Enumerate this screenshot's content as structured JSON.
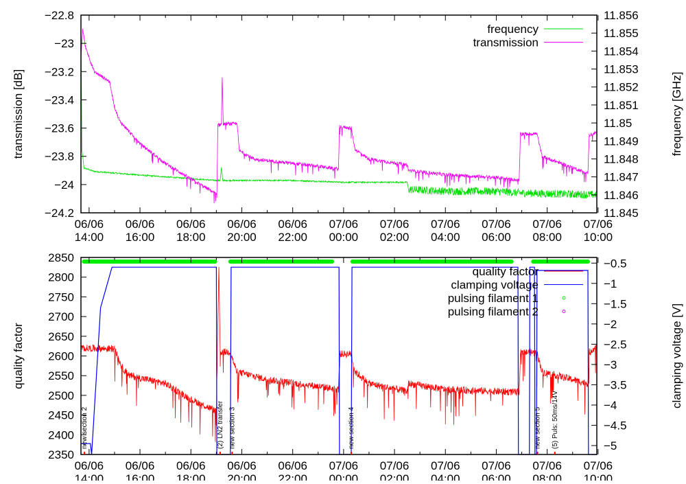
{
  "chart_data": [
    {
      "type": "line",
      "title": "",
      "xlabel": "",
      "ylabel": "transmission [dB]",
      "y2label": "frequency [GHz]",
      "x_unit": "hours since 06/06 00:00",
      "xlim": [
        13.68,
        33.95
      ],
      "ylim": [
        -24.2,
        -22.8
      ],
      "y2lim": [
        11.845,
        11.856
      ],
      "yticks": [
        "-24.2",
        "-24",
        "-23.8",
        "-23.6",
        "-23.4",
        "-23.2",
        "-23",
        "-22.8"
      ],
      "y2ticks": [
        "11.845",
        "11.846",
        "11.847",
        "11.848",
        "11.849",
        "11.85",
        "11.851",
        "11.852",
        "11.853",
        "11.854",
        "11.855",
        "11.856"
      ],
      "xticks": [
        {
          "h": 14,
          "date": "06/06",
          "time": "14:00"
        },
        {
          "h": 16,
          "date": "06/06",
          "time": "16:00"
        },
        {
          "h": 18,
          "date": "06/06",
          "time": "18:00"
        },
        {
          "h": 20,
          "date": "06/06",
          "time": "20:00"
        },
        {
          "h": 22,
          "date": "06/06",
          "time": "22:00"
        },
        {
          "h": 24,
          "date": "07/06",
          "time": "00:00"
        },
        {
          "h": 26,
          "date": "07/06",
          "time": "02:00"
        },
        {
          "h": 28,
          "date": "07/06",
          "time": "04:00"
        },
        {
          "h": 30,
          "date": "07/06",
          "time": "06:00"
        },
        {
          "h": 32,
          "date": "07/06",
          "time": "08:00"
        },
        {
          "h": 34,
          "date": "07/06",
          "time": "10:00"
        }
      ],
      "legend_position": "top-right",
      "series": [
        {
          "name": "frequency",
          "axis": "y2",
          "color": "#00dd00",
          "noise": 4e-05,
          "noise_after": [
            26.55,
            0.00022
          ],
          "points": [
            [
              13.68,
              11.8555
            ],
            [
              13.72,
              11.8485
            ],
            [
              13.8,
              11.8475
            ],
            [
              14.2,
              11.8473
            ],
            [
              16,
              11.8471
            ],
            [
              18,
              11.8469
            ],
            [
              19,
              11.8468
            ],
            [
              19.15,
              11.8468
            ],
            [
              19.2,
              11.8475
            ],
            [
              19.25,
              11.8468
            ],
            [
              22,
              11.8468
            ],
            [
              24,
              11.8467
            ],
            [
              26.5,
              11.8467
            ],
            [
              26.55,
              11.8463
            ],
            [
              28,
              11.8462
            ],
            [
              30,
              11.8462
            ],
            [
              31,
              11.8461
            ],
            [
              33.95,
              11.846
            ]
          ]
        },
        {
          "name": "transmission",
          "axis": "y",
          "color": "#ee00ee",
          "noise": 0.012,
          "points": [
            [
              13.68,
              -23.1
            ],
            [
              13.75,
              -22.9
            ],
            [
              13.85,
              -23.02
            ],
            [
              14.2,
              -23.2
            ],
            [
              14.8,
              -23.27
            ],
            [
              15.0,
              -23.45
            ],
            [
              15.2,
              -23.55
            ],
            [
              16,
              -23.71
            ],
            [
              17,
              -23.85
            ],
            [
              18,
              -23.96
            ],
            [
              18.95,
              -24.06
            ],
            [
              19.02,
              -24.08
            ],
            [
              19.06,
              -23.58
            ],
            [
              19.2,
              -23.57
            ],
            [
              19.23,
              -23.22
            ],
            [
              19.27,
              -23.57
            ],
            [
              19.82,
              -23.57
            ],
            [
              19.9,
              -23.76
            ],
            [
              20.5,
              -23.82
            ],
            [
              22,
              -23.85
            ],
            [
              23,
              -23.87
            ],
            [
              23.8,
              -23.89
            ],
            [
              23.84,
              -23.59
            ],
            [
              24.3,
              -23.6
            ],
            [
              24.45,
              -23.75
            ],
            [
              25,
              -23.82
            ],
            [
              26.5,
              -23.86
            ],
            [
              26.55,
              -23.9
            ],
            [
              28,
              -23.93
            ],
            [
              30,
              -23.95
            ],
            [
              30.9,
              -23.97
            ],
            [
              30.95,
              -23.64
            ],
            [
              31.6,
              -23.64
            ],
            [
              31.8,
              -23.8
            ],
            [
              33,
              -23.88
            ],
            [
              33.6,
              -23.92
            ],
            [
              33.65,
              -23.65
            ],
            [
              33.95,
              -23.63
            ]
          ]
        }
      ]
    },
    {
      "type": "line",
      "title": "",
      "xlabel": "",
      "ylabel": "quality factor",
      "y2label": "clamping voltage [V]",
      "x_unit": "hours since 06/06 00:00",
      "xlim": [
        13.68,
        33.95
      ],
      "ylim": [
        2350,
        2850
      ],
      "y2lim": [
        -5.22,
        -0.36
      ],
      "yticks": [
        "2350",
        "2400",
        "2450",
        "2500",
        "2550",
        "2600",
        "2650",
        "2700",
        "2750",
        "2800",
        "2850"
      ],
      "y2ticks": [
        "-5",
        "-4.5",
        "-4",
        "-3.5",
        "-3",
        "-2.5",
        "-2",
        "-1.5",
        "-1",
        "-0.5"
      ],
      "legend_position": "top-right",
      "series": [
        {
          "name": "quality factor",
          "axis": "y",
          "color": "#ff0000",
          "noise": 9,
          "points": [
            [
              13.68,
              2620
            ],
            [
              15.0,
              2618
            ],
            [
              15.3,
              2570
            ],
            [
              15.6,
              2550
            ],
            [
              17,
              2530
            ],
            [
              18,
              2490
            ],
            [
              19.0,
              2460
            ],
            [
              19.1,
              2820
            ],
            [
              19.15,
              2610
            ],
            [
              19.55,
              2610
            ],
            [
              19.8,
              2560
            ],
            [
              21,
              2540
            ],
            [
              23,
              2523
            ],
            [
              23.8,
              2515
            ],
            [
              23.85,
              2605
            ],
            [
              24.3,
              2605
            ],
            [
              24.45,
              2560
            ],
            [
              25,
              2530
            ],
            [
              26.5,
              2510
            ],
            [
              26.55,
              2530
            ],
            [
              28,
              2515
            ],
            [
              30,
              2510
            ],
            [
              30.9,
              2508
            ],
            [
              30.95,
              2610
            ],
            [
              31.6,
              2608
            ],
            [
              31.8,
              2560
            ],
            [
              33,
              2540
            ],
            [
              33.6,
              2530
            ],
            [
              33.65,
              2610
            ],
            [
              33.95,
              2625
            ]
          ]
        },
        {
          "name": "clamping voltage",
          "axis": "y2",
          "color": "#0000ff",
          "points": [
            [
              13.68,
              -4.95
            ],
            [
              14.05,
              -4.95
            ],
            [
              14.1,
              -5.22
            ],
            [
              14.45,
              -1.6
            ],
            [
              14.9,
              -0.6
            ],
            [
              19.0,
              -0.6
            ],
            [
              19.02,
              -5.22
            ],
            [
              19.55,
              -5.22
            ],
            [
              19.58,
              -0.6
            ],
            [
              23.82,
              -0.6
            ],
            [
              23.84,
              -5.22
            ],
            [
              24.3,
              -5.22
            ],
            [
              24.33,
              -0.6
            ],
            [
              30.85,
              -0.6
            ],
            [
              30.87,
              -5.22
            ],
            [
              31.3,
              -5.22
            ],
            [
              31.32,
              -0.6
            ],
            [
              31.5,
              -0.6
            ],
            [
              31.52,
              -5.22
            ],
            [
              31.58,
              -5.22
            ],
            [
              31.6,
              -0.68
            ],
            [
              33.6,
              -0.68
            ],
            [
              33.62,
              -5.22
            ]
          ]
        },
        {
          "name": "pulsing filament 1",
          "axis": "marker",
          "color": "#00ee00",
          "intervals": [
            [
              13.8,
              18.95
            ],
            [
              19.55,
              23.55
            ],
            [
              24.35,
              30.6
            ],
            [
              31.45,
              33.6
            ]
          ]
        },
        {
          "name": "pulsing filament 2",
          "axis": "marker",
          "color": "#ee00ee",
          "intervals": []
        }
      ],
      "annotations": [
        {
          "h": 13.82,
          "text": "new section 2"
        },
        {
          "h": 19.15,
          "text": "(2) LN2 transfer"
        },
        {
          "h": 19.62,
          "text": "new section 3"
        },
        {
          "h": 24.3,
          "text": "new section 4"
        },
        {
          "h": 31.62,
          "text": "new section 5"
        },
        {
          "h": 32.3,
          "text": "(5) Puls: 50ms/14V"
        }
      ]
    }
  ]
}
